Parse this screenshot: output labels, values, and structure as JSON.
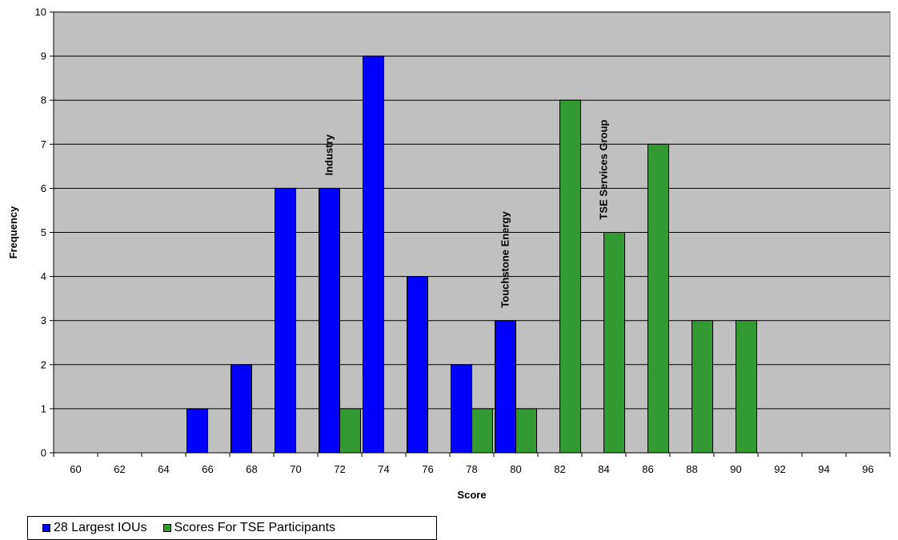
{
  "chart_data": {
    "type": "bar",
    "categories": [
      "60",
      "62",
      "64",
      "66",
      "68",
      "70",
      "72",
      "74",
      "76",
      "78",
      "80",
      "82",
      "84",
      "86",
      "88",
      "90",
      "92",
      "94",
      "96"
    ],
    "series": [
      {
        "name": "28 Largest IOUs",
        "color": "#0000ff",
        "values": [
          0,
          0,
          0,
          1,
          2,
          6,
          6,
          9,
          4,
          2,
          3,
          0,
          0,
          0,
          0,
          0,
          0,
          0,
          0
        ]
      },
      {
        "name": "Scores For TSE Participants",
        "color": "#339933",
        "values": [
          0,
          0,
          0,
          0,
          0,
          0,
          1,
          0,
          0,
          1,
          1,
          8,
          5,
          7,
          3,
          3,
          0,
          0,
          0
        ]
      }
    ],
    "xlabel": "Score",
    "ylabel": "Frequency",
    "ylim": [
      0,
      10
    ],
    "yticks": [
      "0",
      "1",
      "2",
      "3",
      "4",
      "5",
      "6",
      "7",
      "8",
      "9",
      "10"
    ],
    "grid": true,
    "plot_background": "#c0c0c0",
    "legend_position": "bottom-left",
    "annotations": [
      {
        "text": "Industry",
        "x": 72,
        "y": 6
      },
      {
        "text": "Touchstone Energy",
        "x": 80,
        "y": 3
      },
      {
        "text": "TSE Services Group",
        "x": 84,
        "y": 5
      }
    ]
  }
}
